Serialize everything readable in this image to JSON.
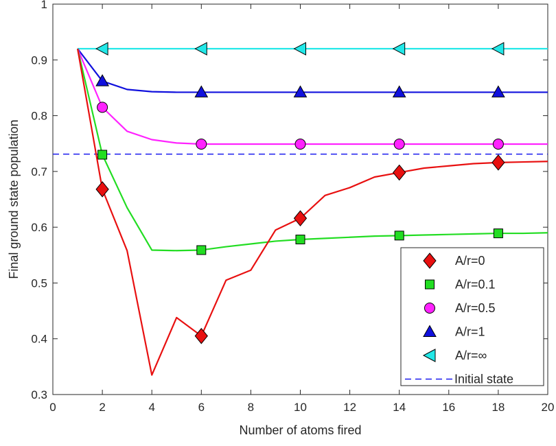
{
  "chart_data": {
    "type": "line",
    "xlabel": "Number of atoms fired",
    "ylabel": "Final ground state population",
    "xlim": [
      0,
      20
    ],
    "ylim": [
      0.3,
      1
    ],
    "xticks": [
      "0",
      "2",
      "4",
      "6",
      "8",
      "10",
      "12",
      "14",
      "16",
      "18",
      "20"
    ],
    "yticks": [
      "0.3",
      "0.4",
      "0.5",
      "0.6",
      "0.7",
      "0.8",
      "0.9",
      "1"
    ],
    "grid": false,
    "legend_position": "bottom-right",
    "series": [
      {
        "name": "A/r=0",
        "color": "#e81010",
        "marker": "diamond",
        "x": [
          1,
          2,
          3,
          4,
          5,
          6,
          7,
          8,
          9,
          10,
          11,
          12,
          13,
          14,
          15,
          16,
          17,
          18,
          19,
          20
        ],
        "y": [
          0.92,
          0.668,
          0.558,
          0.335,
          0.438,
          0.405,
          0.505,
          0.523,
          0.595,
          0.616,
          0.657,
          0.671,
          0.69,
          0.698,
          0.706,
          0.71,
          0.714,
          0.716,
          0.717,
          0.718
        ],
        "marker_x": [
          2,
          6,
          10,
          14,
          18
        ]
      },
      {
        "name": "A/r=0.1",
        "color": "#22dd22",
        "marker": "square",
        "x": [
          1,
          2,
          3,
          4,
          5,
          6,
          7,
          8,
          9,
          10,
          11,
          12,
          13,
          14,
          15,
          16,
          17,
          18,
          19,
          20
        ],
        "y": [
          0.92,
          0.73,
          0.635,
          0.559,
          0.558,
          0.559,
          0.565,
          0.57,
          0.575,
          0.578,
          0.58,
          0.582,
          0.584,
          0.585,
          0.586,
          0.587,
          0.588,
          0.589,
          0.589,
          0.59
        ],
        "marker_x": [
          2,
          6,
          10,
          14,
          18
        ]
      },
      {
        "name": "A/r=0.5",
        "color": "#ff22ff",
        "marker": "circle",
        "x": [
          1,
          2,
          3,
          4,
          5,
          6,
          7,
          8,
          9,
          10,
          11,
          12,
          13,
          14,
          15,
          16,
          17,
          18,
          19,
          20
        ],
        "y": [
          0.92,
          0.815,
          0.772,
          0.757,
          0.751,
          0.749,
          0.749,
          0.749,
          0.749,
          0.749,
          0.749,
          0.749,
          0.749,
          0.749,
          0.749,
          0.749,
          0.749,
          0.749,
          0.749,
          0.749
        ],
        "marker_x": [
          2,
          6,
          10,
          14,
          18
        ]
      },
      {
        "name": "A/r=1",
        "color": "#1010dd",
        "marker": "triangle-up",
        "x": [
          1,
          2,
          3,
          4,
          5,
          6,
          7,
          8,
          9,
          10,
          11,
          12,
          13,
          14,
          15,
          16,
          17,
          18,
          19,
          20
        ],
        "y": [
          0.92,
          0.862,
          0.847,
          0.843,
          0.842,
          0.842,
          0.842,
          0.842,
          0.842,
          0.842,
          0.842,
          0.842,
          0.842,
          0.842,
          0.842,
          0.842,
          0.842,
          0.842,
          0.842,
          0.842
        ],
        "marker_x": [
          2,
          6,
          10,
          14,
          18
        ]
      },
      {
        "name": "A/r=∞",
        "color": "#22e8e8",
        "marker": "triangle-left",
        "x": [
          1,
          20
        ],
        "y": [
          0.92,
          0.92
        ],
        "marker_x": [
          2,
          6,
          10,
          14,
          18
        ]
      },
      {
        "name": "Initial state",
        "color": "#1a1aee",
        "marker": "none",
        "dashed": true,
        "x": [
          0,
          20
        ],
        "y": [
          0.731,
          0.731
        ]
      }
    ]
  }
}
